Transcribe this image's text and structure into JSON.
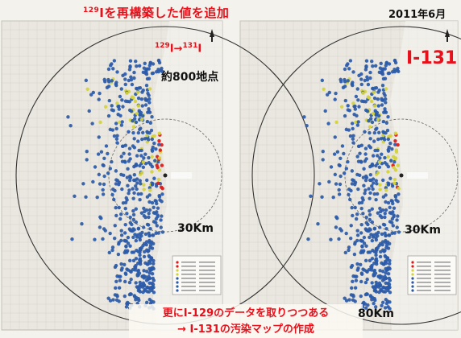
{
  "header": {
    "left_title_sup": "129",
    "left_title": "Iを再構築した値を追加",
    "date": "2011年6月",
    "arrow_from_sup": "129",
    "arrow_from": "I",
    "arrow_glyph": "→",
    "arrow_to_sup": "131",
    "arrow_to": "I",
    "right_isotope": "I-131",
    "points": "約800地点"
  },
  "distance_labels": {
    "left_30km": "30Km",
    "right_30km": "30Km",
    "right_80km": "80Km"
  },
  "footer": {
    "line1": "更にI-129のデータを取りつつある",
    "line2": "→ I-131の汚染マップの作成"
  },
  "colors": {
    "blue": "#2a5aa8",
    "yellow": "#d4d23a",
    "red": "#e01818",
    "accent_text": "#e8101a"
  }
}
